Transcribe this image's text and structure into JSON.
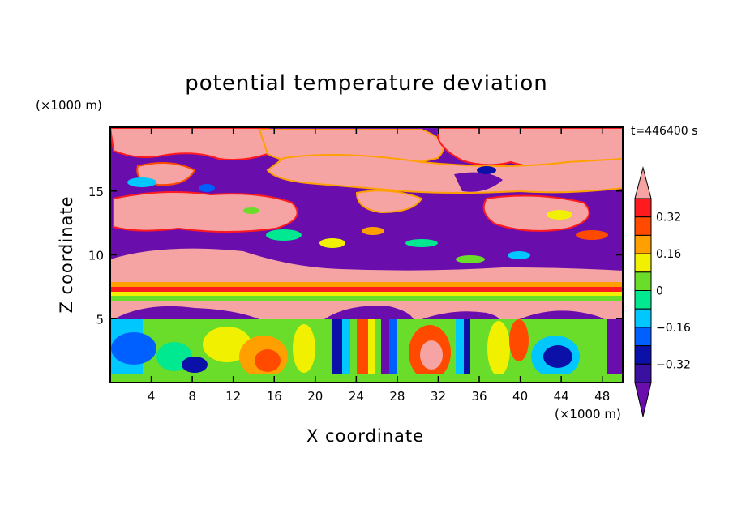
{
  "chart_data": {
    "type": "heatmap",
    "title": "potential temperature deviation",
    "xlabel": "X coordinate",
    "ylabel": "Z coordinate",
    "x_unit": "(×1000 m)",
    "y_unit": "(×1000 m)",
    "annotation": "t=446400 s",
    "xlim": [
      0,
      50
    ],
    "ylim": [
      0,
      20
    ],
    "xticks": [
      4,
      8,
      12,
      16,
      20,
      24,
      28,
      32,
      36,
      40,
      44,
      48
    ],
    "yticks": [
      5,
      10,
      15
    ],
    "colorbar": {
      "levels": [
        -0.4,
        -0.32,
        -0.24,
        -0.16,
        -0.08,
        0,
        0.08,
        0.16,
        0.24,
        0.32,
        0.4
      ],
      "labeled_levels": [
        "0.32",
        "0.16",
        "0",
        "−0.16",
        "−0.32"
      ],
      "colors_low_to_high": [
        "#6a0dad",
        "#3a10a0",
        "#0a10a8",
        "#0060ff",
        "#00c8ff",
        "#00e890",
        "#6adc2a",
        "#f0f000",
        "#ffa000",
        "#ff4a00",
        "#ff1a20",
        "#f5a3a3"
      ],
      "extend": "both"
    }
  }
}
